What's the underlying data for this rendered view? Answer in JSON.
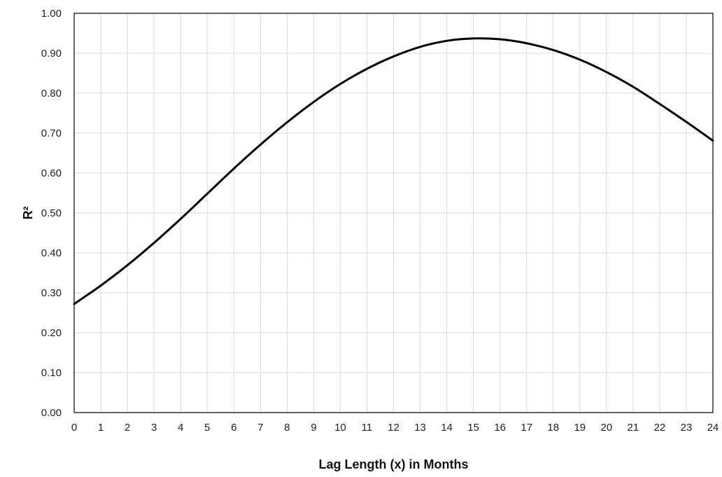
{
  "chart_data": {
    "type": "line",
    "xlabel": "Lag Length (x) in Months",
    "ylabel": "R²",
    "xlim": [
      0,
      24
    ],
    "ylim": [
      0,
      1
    ],
    "x_ticks": [
      0,
      1,
      2,
      3,
      4,
      5,
      6,
      7,
      8,
      9,
      10,
      11,
      12,
      13,
      14,
      15,
      16,
      17,
      18,
      19,
      20,
      21,
      22,
      23,
      24
    ],
    "y_ticks": [
      "0.00",
      "0.10",
      "0.20",
      "0.30",
      "0.40",
      "0.50",
      "0.60",
      "0.70",
      "0.80",
      "0.90",
      "1.00"
    ],
    "grid": true,
    "series": [
      {
        "color": "#000000",
        "x": [
          0,
          1,
          2,
          3,
          4,
          5,
          6,
          7,
          8,
          9,
          10,
          11,
          12,
          13,
          14,
          15,
          16,
          17,
          18,
          19,
          20,
          21,
          22,
          23,
          24
        ],
        "y": [
          0.272,
          0.318,
          0.369,
          0.425,
          0.485,
          0.548,
          0.611,
          0.671,
          0.727,
          0.778,
          0.823,
          0.861,
          0.892,
          0.916,
          0.931,
          0.937,
          0.935,
          0.925,
          0.908,
          0.884,
          0.853,
          0.816,
          0.773,
          0.728,
          0.681
        ]
      }
    ]
  }
}
